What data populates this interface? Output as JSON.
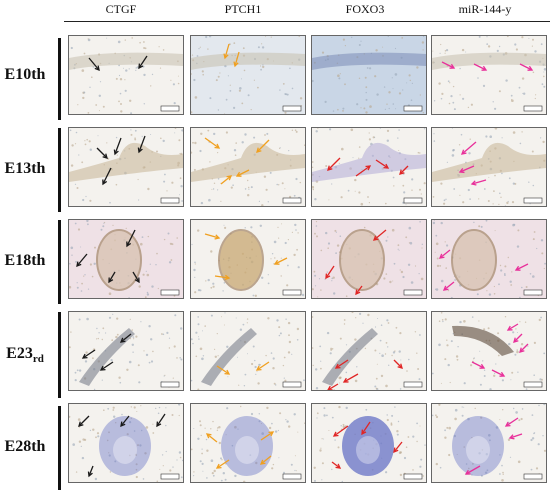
{
  "columns": [
    "CTGF",
    "PTCH1",
    "FOXO3",
    "miR-144-y"
  ],
  "rows": [
    {
      "label": "E10th",
      "sub": ""
    },
    {
      "label": "E13th",
      "sub": ""
    },
    {
      "label": "E18th",
      "sub": ""
    },
    {
      "label": "E23",
      "sub": "rd"
    },
    {
      "label": "E28th",
      "sub": ""
    }
  ],
  "colors": {
    "arrow_ctgf": "#1a1a1a",
    "arrow_ptch1": "#f0a020",
    "arrow_foxo3": "#e02525",
    "arrow_mir": "#e8309a",
    "tissue_bg": "#f4f2ee",
    "stain_brown": "#b08a5a",
    "stain_blue": "#6f79c8"
  }
}
